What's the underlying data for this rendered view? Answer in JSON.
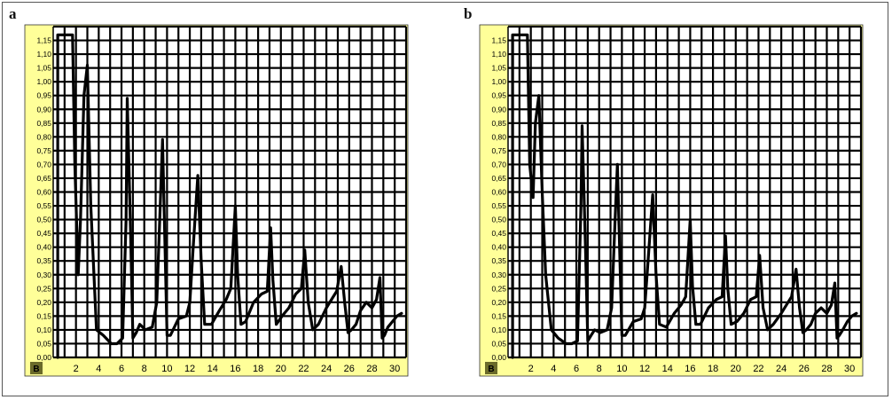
{
  "colors": {
    "panel_bg": "#ffff99",
    "grid": "#000000",
    "trace": "#000000",
    "corner": "#6b6b2a"
  },
  "panels": [
    {
      "label": "a",
      "corner_label": "B"
    },
    {
      "label": "b",
      "corner_label": "B"
    }
  ],
  "chart_data": [
    {
      "type": "line",
      "panel": "a",
      "corner_label": "B",
      "xlim": [
        0,
        31
      ],
      "ylim": [
        0,
        1.2
      ],
      "x_ticks": [
        "2",
        "4",
        "6",
        "8",
        "10",
        "12",
        "14",
        "16",
        "18",
        "20",
        "22",
        "24",
        "26",
        "28",
        "30"
      ],
      "y_ticks": [
        "0,00",
        "0,05",
        "0,10",
        "0,15",
        "0,20",
        "0,25",
        "0,30",
        "0,35",
        "0,40",
        "0,45",
        "0,50",
        "0,55",
        "0,60",
        "0,65",
        "0,70",
        "0,75",
        "0,80",
        "0,85",
        "0,90",
        "0,95",
        "1,00",
        "1,05",
        "1,10",
        "1,15"
      ],
      "grid": true,
      "x": [
        0.4,
        0.4,
        1.2,
        1.7,
        1.9,
        2.2,
        2.4,
        2.7,
        3.0,
        3.3,
        3.8,
        4.4,
        5.1,
        5.6,
        6.1,
        6.4,
        6.5,
        6.8,
        7.0,
        7.3,
        7.6,
        8.1,
        8.7,
        9.1,
        9.4,
        9.6,
        10.0,
        10.3,
        11.0,
        11.7,
        12.0,
        12.3,
        12.7,
        13.0,
        13.3,
        13.9,
        14.6,
        15.2,
        15.6,
        16.0,
        16.2,
        16.5,
        16.9,
        17.6,
        18.3,
        18.8,
        19.1,
        19.3,
        19.6,
        20.1,
        20.7,
        21.3,
        21.8,
        22.1,
        22.4,
        22.8,
        23.3,
        24.0,
        24.6,
        24.9,
        25.3,
        25.6,
        25.9,
        26.2,
        26.6,
        27.0,
        27.5,
        28.0,
        28.4,
        28.7,
        28.9,
        29.1,
        29.4,
        29.8,
        30.2,
        30.6
      ],
      "y": [
        0.0,
        1.17,
        1.17,
        1.17,
        0.7,
        0.3,
        0.5,
        0.95,
        1.06,
        0.55,
        0.1,
        0.08,
        0.05,
        0.05,
        0.07,
        0.5,
        0.94,
        0.45,
        0.07,
        0.09,
        0.12,
        0.1,
        0.11,
        0.2,
        0.55,
        0.79,
        0.08,
        0.08,
        0.14,
        0.15,
        0.2,
        0.4,
        0.66,
        0.35,
        0.12,
        0.12,
        0.17,
        0.21,
        0.25,
        0.55,
        0.3,
        0.12,
        0.13,
        0.2,
        0.23,
        0.24,
        0.47,
        0.28,
        0.12,
        0.15,
        0.18,
        0.23,
        0.25,
        0.39,
        0.2,
        0.1,
        0.12,
        0.18,
        0.22,
        0.24,
        0.33,
        0.2,
        0.09,
        0.1,
        0.12,
        0.17,
        0.2,
        0.18,
        0.21,
        0.29,
        0.07,
        0.08,
        0.11,
        0.13,
        0.15,
        0.16
      ]
    },
    {
      "type": "line",
      "panel": "b",
      "corner_label": "B",
      "xlim": [
        0,
        31
      ],
      "ylim": [
        0,
        1.2
      ],
      "x_ticks": [
        "2",
        "4",
        "6",
        "8",
        "10",
        "12",
        "14",
        "16",
        "18",
        "20",
        "22",
        "24",
        "26",
        "28",
        "30"
      ],
      "y_ticks": [
        "0,00",
        "0,05",
        "0,10",
        "0,15",
        "0,20",
        "0,25",
        "0,30",
        "0,35",
        "0,40",
        "0,45",
        "0,50",
        "0,55",
        "0,60",
        "0,65",
        "0,70",
        "0,75",
        "0,80",
        "0,85",
        "0,90",
        "0,95",
        "1,00",
        "1,05",
        "1,10",
        "1,15"
      ],
      "grid": true,
      "x": [
        0.4,
        0.4,
        1.2,
        1.7,
        1.9,
        2.2,
        2.4,
        2.7,
        3.0,
        3.3,
        3.8,
        4.4,
        5.1,
        5.6,
        6.1,
        6.4,
        6.5,
        6.8,
        7.0,
        7.3,
        7.6,
        8.1,
        8.7,
        9.1,
        9.4,
        9.6,
        10.0,
        10.3,
        11.0,
        11.7,
        12.0,
        12.3,
        12.7,
        13.0,
        13.3,
        13.9,
        14.6,
        15.2,
        15.6,
        16.0,
        16.2,
        16.5,
        16.9,
        17.6,
        18.3,
        18.8,
        19.1,
        19.3,
        19.6,
        20.1,
        20.7,
        21.3,
        21.8,
        22.1,
        22.4,
        22.8,
        23.3,
        24.0,
        24.6,
        24.9,
        25.3,
        25.6,
        25.9,
        26.2,
        26.6,
        27.0,
        27.5,
        28.0,
        28.4,
        28.7,
        28.9,
        29.1,
        29.4,
        29.8,
        30.2,
        30.6
      ],
      "y": [
        0.0,
        1.17,
        1.17,
        1.17,
        0.7,
        0.58,
        0.85,
        0.95,
        0.6,
        0.3,
        0.1,
        0.07,
        0.05,
        0.05,
        0.06,
        0.55,
        0.84,
        0.4,
        0.06,
        0.08,
        0.1,
        0.09,
        0.1,
        0.18,
        0.5,
        0.7,
        0.08,
        0.08,
        0.13,
        0.14,
        0.18,
        0.35,
        0.59,
        0.3,
        0.12,
        0.11,
        0.16,
        0.19,
        0.22,
        0.5,
        0.26,
        0.12,
        0.12,
        0.18,
        0.21,
        0.22,
        0.44,
        0.25,
        0.12,
        0.13,
        0.16,
        0.21,
        0.22,
        0.37,
        0.18,
        0.1,
        0.12,
        0.16,
        0.2,
        0.22,
        0.32,
        0.18,
        0.09,
        0.1,
        0.12,
        0.16,
        0.18,
        0.16,
        0.19,
        0.27,
        0.07,
        0.08,
        0.1,
        0.13,
        0.15,
        0.16
      ]
    }
  ]
}
